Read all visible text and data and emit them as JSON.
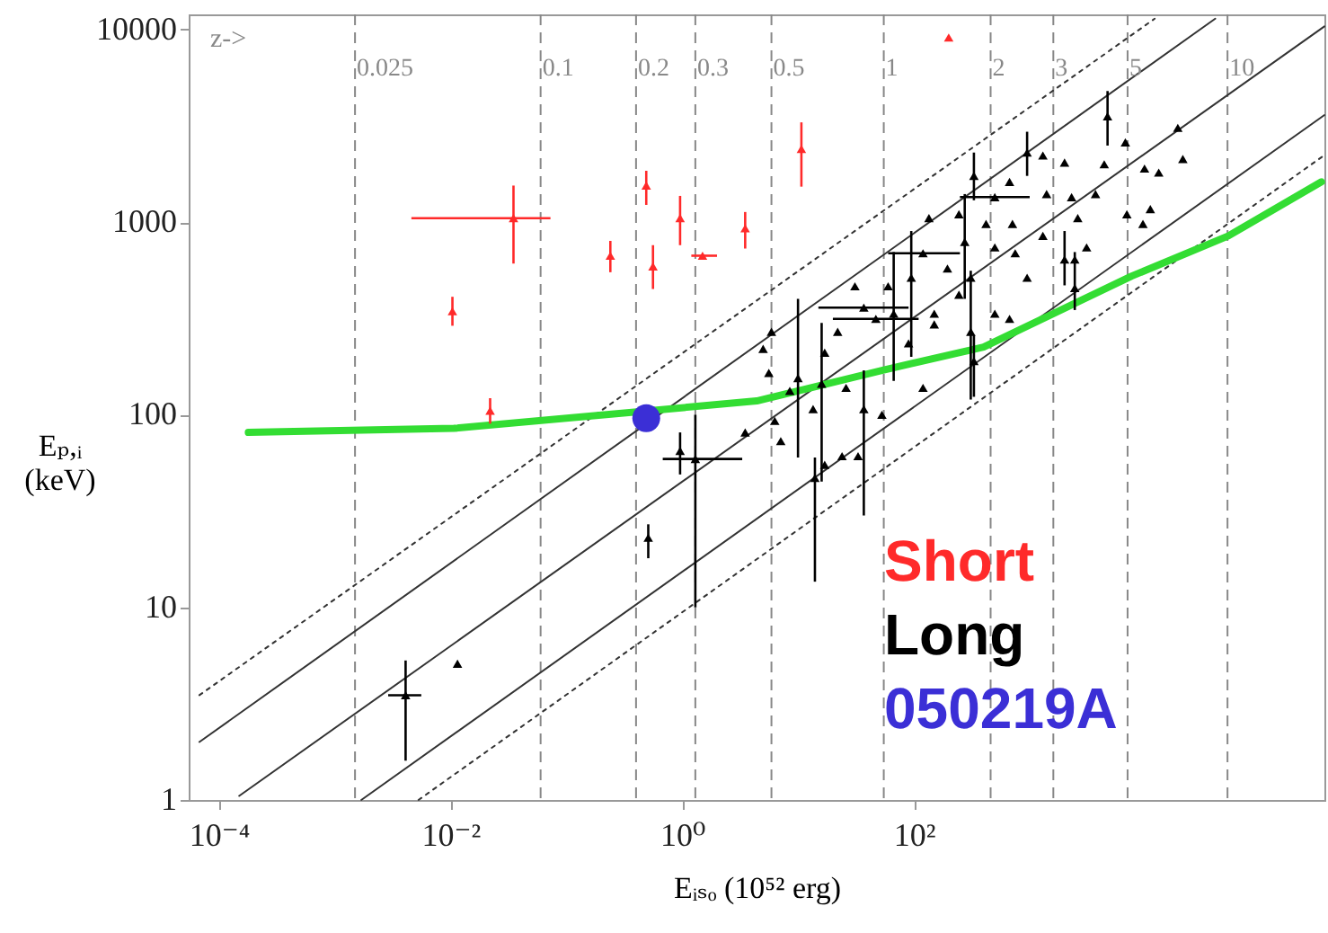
{
  "chart_data": {
    "type": "scatter",
    "xlabel": "Eᵢₛₒ (10⁵² erg)",
    "ylabel": "Eₚ,ᵢ (keV)",
    "log": "xy",
    "grid": false,
    "legend": "bottom right",
    "xlim": [
      5.5e-05,
      350000
    ],
    "ylim": [
      1,
      12000
    ],
    "xticks": [
      {
        "value": 0.0001,
        "label": "10⁻⁴"
      },
      {
        "value": 0.01,
        "label": "10⁻²"
      },
      {
        "value": 1,
        "label": "10⁰"
      },
      {
        "value": 100,
        "label": "10²"
      }
    ],
    "yticks": [
      1,
      10,
      100,
      1000,
      10000
    ],
    "annotations": [
      "z->",
      {
        "text": "0.025",
        "x": 0.0015,
        "y": 6300
      },
      {
        "text": "0.1",
        "x": 0.06,
        "y": 6300
      },
      {
        "text": "0.2",
        "x": 0.4,
        "y": 6300
      },
      {
        "text": "0.3",
        "x": 1.3,
        "y": 6300
      },
      {
        "text": "0.5",
        "x": 5.9,
        "y": 6300
      },
      {
        "text": "1",
        "x": 55,
        "y": 6300
      },
      {
        "text": "2",
        "x": 460,
        "y": 6300
      },
      {
        "text": "3",
        "x": 1600,
        "y": 6300
      },
      {
        "text": "5",
        "x": 7000,
        "y": 6300
      },
      {
        "text": "10",
        "x": 51000,
        "y": 6300
      }
    ],
    "ref_lines": [
      {
        "axis": "x",
        "value": 0.0015,
        "color": "#888888",
        "line_style": "dashed"
      },
      {
        "axis": "x",
        "value": 0.06,
        "color": "#888888",
        "line_style": "dashed"
      },
      {
        "axis": "x",
        "value": 0.4,
        "color": "#888888",
        "line_style": "dashed"
      },
      {
        "axis": "x",
        "value": 1.3,
        "color": "#888888",
        "line_style": "dashed"
      },
      {
        "axis": "x",
        "value": 5.9,
        "color": "#888888",
        "line_style": "dashed"
      },
      {
        "axis": "x",
        "value": 55,
        "color": "#888888",
        "line_style": "dashed"
      },
      {
        "axis": "x",
        "value": 460,
        "color": "#888888",
        "line_style": "dashed"
      },
      {
        "axis": "x",
        "value": 1600,
        "color": "#888888",
        "line_style": "dashed"
      },
      {
        "axis": "x",
        "value": 7000,
        "color": "#888888",
        "line_style": "dashed"
      },
      {
        "axis": "x",
        "value": 51000,
        "color": "#888888",
        "line_style": "dashed"
      }
    ],
    "series": [
      {
        "type": "line",
        "color": "#333333",
        "line_style": "dotted",
        "x": [
          6.8e-05,
          12000
        ],
        "values": [
          3.5,
          11400
        ]
      },
      {
        "type": "line",
        "color": "#333333",
        "line_style": "solid",
        "x": [
          6.8e-05,
          40000
        ],
        "values": [
          2.0,
          11400
        ]
      },
      {
        "type": "line",
        "color": "#333333",
        "line_style": "solid",
        "x": [
          0.00015,
          350000
        ],
        "values": [
          1.05,
          10400
        ]
      },
      {
        "type": "line",
        "color": "#333333",
        "line_style": "solid",
        "x": [
          0.0017,
          350000
        ],
        "values": [
          1,
          3600
        ]
      },
      {
        "type": "line",
        "color": "#333333",
        "line_style": "dotted",
        "x": [
          0.0053,
          350000
        ],
        "values": [
          1,
          2230
        ]
      },
      {
        "type": "line",
        "color": "#33dd33",
        "line_style": "solid",
        "x": [
          0.00018,
          0.0107,
          4.4,
          53,
          400,
          7600,
          52000,
          330000
        ],
        "values": [
          81,
          85,
          118,
          170,
          225,
          525,
          850,
          1620
        ]
      },
      {
        "type": "scatter",
        "name": "Short",
        "color": "#ff2a2a",
        "marker": "triangle",
        "x": [
          0.035,
          0.0104,
          0.022,
          0.24,
          0.49,
          0.56,
          0.96,
          1.5,
          3.5,
          10.7,
          200
        ],
        "values": [
          1050,
          345,
          105,
          670,
          1550,
          590,
          1050,
          670,
          930,
          2400,
          9100
        ],
        "errors": [
          [
            610,
            1550
          ],
          [
            290,
            410
          ],
          [
            90,
            122
          ],
          [
            550,
            800
          ],
          [
            1230,
            1850
          ],
          [
            450,
            760
          ],
          [
            760,
            1370
          ],
          null,
          [
            730,
            1130
          ],
          [
            1530,
            3300
          ],
          null
        ],
        "xerrors": [
          [
            0.0046,
            0.073
          ],
          null,
          null,
          null,
          null,
          null,
          null,
          [
            1.2,
            2.0
          ],
          null,
          null,
          null
        ]
      },
      {
        "type": "scatter",
        "name": "Long",
        "color": "#000000",
        "marker": "triangle",
        "x": [
          4700,
          6700,
          19000,
          21000,
          9800,
          13000,
          6900,
          11000,
          950,
          1300,
          2000,
          4400,
          330,
          500,
          670,
          1400,
          2300,
          3700,
          2600,
          2000,
          3100,
          1300,
          710,
          420,
          275,
          195,
          120,
          135,
          500,
          750,
          950,
          310,
          95,
          60,
          37,
          67,
          150,
          245,
          500,
          670,
          310,
          150,
          90,
          47,
          31,
          22,
          17,
          10,
          5.9,
          5.0,
          5.6,
          8.5,
          13.5,
          26,
          37,
          53,
          120,
          16,
          3.5,
          6.3,
          7.1,
          2450,
          9500,
          2450,
          245,
          0.0041,
          0.0115,
          0.51,
          0.96,
          1.3,
          14,
          17,
          24,
          33,
          330
        ],
        "values": [
          3550,
          2600,
          3090,
          2130,
          1900,
          1810,
          1100,
          1170,
          2300,
          2220,
          2040,
          2000,
          1740,
          1350,
          1620,
          1400,
          1350,
          1400,
          1050,
          640,
          740,
          850,
          980,
          980,
          790,
          575,
          690,
          1050,
          740,
          690,
          515,
          515,
          515,
          465,
          360,
          335,
          335,
          420,
          335,
          315,
          270,
          295,
          235,
          315,
          465,
          270,
          210,
          155,
          270,
          220,
          165,
          133,
          107,
          138,
          107,
          100,
          138,
          145,
          81,
          93,
          73,
          455,
          980,
          640,
          1100,
          3.5,
          5.1,
          23,
          65,
          59,
          47,
          55,
          61,
          61,
          190
        ],
        "errors": [
          [
            2500,
            4800
          ],
          null,
          null,
          null,
          null,
          null,
          null,
          null,
          [
            1740,
            2950
          ],
          null,
          null,
          null,
          [
            1300,
            2300
          ],
          null,
          null,
          null,
          null,
          null,
          null,
          [
            470,
            900
          ],
          null,
          null,
          null,
          null,
          [
            400,
            1400
          ],
          null,
          null,
          null,
          null,
          null,
          null,
          null,
          [
            200,
            900
          ],
          null,
          null,
          [
            150,
            700
          ],
          null,
          null,
          null,
          null,
          [
            120,
            560
          ],
          null,
          null,
          null,
          null,
          null,
          null,
          [
            60,
            400
          ],
          null,
          null,
          null,
          null,
          null,
          null,
          [
            30,
            170
          ],
          null,
          null,
          [
            45,
            300
          ],
          null,
          null,
          null,
          [
            350,
            700
          ],
          null,
          null,
          null,
          [
            1.6,
            5.3
          ],
          null,
          [
            18,
            27
          ],
          [
            49,
            81
          ],
          [
            10,
            100
          ],
          [
            13.6,
            60
          ],
          null,
          null,
          null,
          [
            124,
            260
          ]
        ],
        "xerrors": [
          null,
          null,
          null,
          null,
          null,
          null,
          null,
          null,
          null,
          null,
          null,
          null,
          null,
          [
            250,
            1000
          ],
          null,
          null,
          null,
          null,
          null,
          null,
          null,
          null,
          null,
          null,
          null,
          null,
          [
            60,
            250
          ],
          null,
          null,
          null,
          null,
          null,
          null,
          null,
          [
            15,
            90
          ],
          null,
          null,
          null,
          null,
          null,
          null,
          null,
          null,
          [
            20,
            110
          ],
          null,
          null,
          null,
          null,
          null,
          null,
          null,
          null,
          null,
          null,
          null,
          null,
          null,
          null,
          null,
          null,
          null,
          null,
          null,
          null,
          null,
          [
            0.0029,
            0.0056
          ],
          null,
          null,
          null,
          [
            0.68,
            3.3
          ],
          null,
          null,
          null,
          null,
          null
        ]
      },
      {
        "type": "scatter",
        "name": "050219A",
        "color": "#3b2fd6",
        "marker": "circle",
        "x": [
          0.49
        ],
        "values": [
          96
        ]
      }
    ]
  }
}
